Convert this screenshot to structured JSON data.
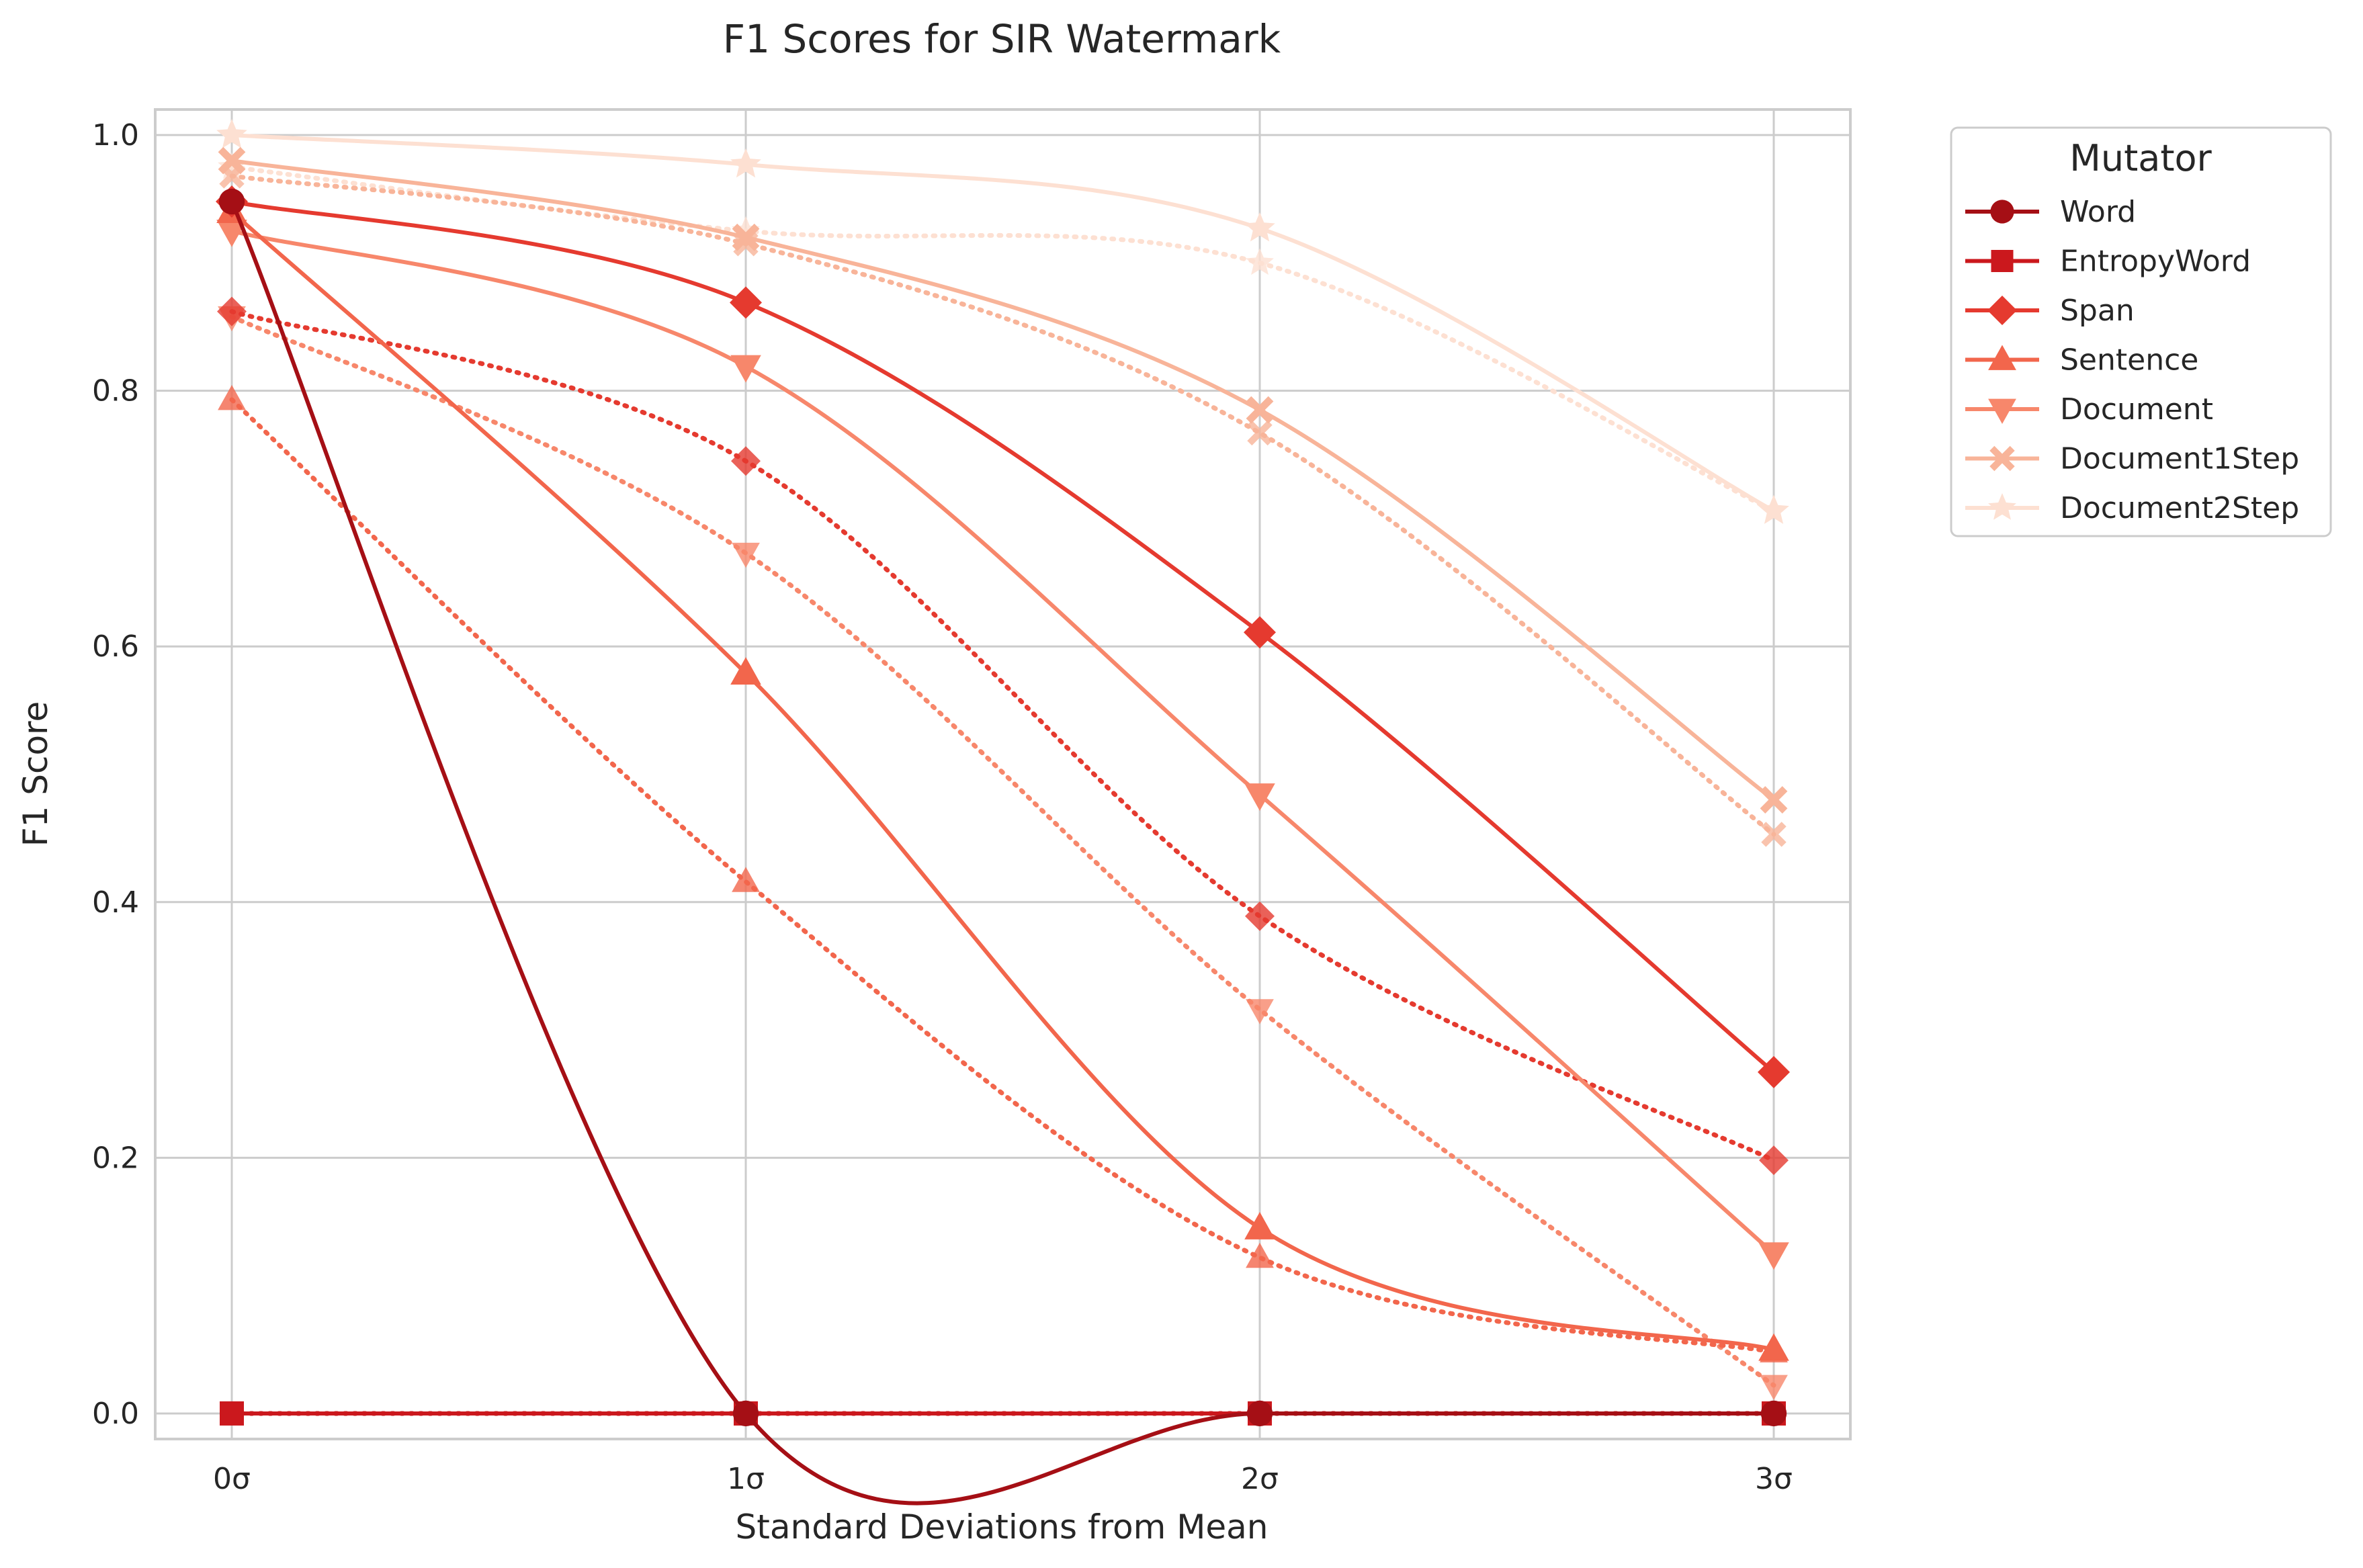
{
  "chart_data": {
    "type": "line",
    "title": "F1 Scores for SIR Watermark",
    "xlabel": "Standard Deviations from Mean",
    "ylabel": "F1 Score",
    "categories": [
      "0σ",
      "1σ",
      "2σ",
      "3σ"
    ],
    "ylim": [
      -0.02,
      1.02
    ],
    "yticks": [
      "0.0",
      "0.2",
      "0.4",
      "0.6",
      "0.8",
      "1.0"
    ],
    "grid": true,
    "legend": {
      "title": "Mutator",
      "placement": "outside-top-right"
    },
    "series": [
      {
        "name": "Word",
        "color": "#a50f15",
        "marker": "circle",
        "values": [
          0.948,
          0.0,
          0.0,
          0.0
        ],
        "dotted_values": null
      },
      {
        "name": "EntropyWord",
        "color": "#cb181d",
        "marker": "square",
        "values": [
          0.0,
          0.0,
          0.0,
          0.0
        ],
        "dotted_values": [
          0.0,
          0.0,
          0.0,
          0.0
        ]
      },
      {
        "name": "Span",
        "color": "#e53a2f",
        "marker": "diamond",
        "values": [
          0.948,
          0.869,
          0.611,
          0.267
        ],
        "dotted_values": [
          0.862,
          0.745,
          0.389,
          0.198
        ]
      },
      {
        "name": "Sentence",
        "color": "#f2664c",
        "marker": "triangle-up",
        "values": [
          0.94,
          0.579,
          0.145,
          0.05
        ],
        "dotted_values": [
          0.793,
          0.416,
          0.122,
          0.048
        ]
      },
      {
        "name": "Document",
        "color": "#f7876b",
        "marker": "triangle-down",
        "values": [
          0.925,
          0.819,
          0.484,
          0.125
        ],
        "dotted_values": [
          0.858,
          0.673,
          0.316,
          0.022
        ]
      },
      {
        "name": "Document1Step",
        "color": "#f8b499",
        "marker": "x",
        "values": [
          0.98,
          0.92,
          0.785,
          0.48
        ],
        "dotted_values": [
          0.968,
          0.915,
          0.767,
          0.453
        ]
      },
      {
        "name": "Document2Step",
        "color": "#fde0d2",
        "marker": "star",
        "values": [
          1.0,
          0.977,
          0.927,
          0.706
        ],
        "dotted_values": [
          0.975,
          0.925,
          0.9,
          0.706
        ]
      }
    ]
  }
}
